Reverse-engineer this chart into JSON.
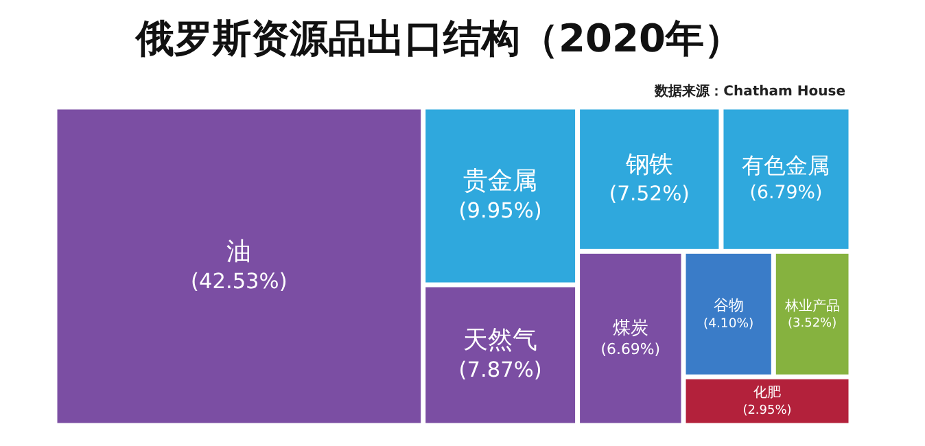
{
  "chart_data": {
    "type": "other",
    "title": "俄罗斯资源品出口结构（2020年）",
    "annotations": [
      "数据来源：Chatham House"
    ],
    "categories": [
      "油",
      "贵金属",
      "天然气",
      "钢铁",
      "有色金属",
      "煤炭",
      "谷物",
      "林业产品",
      "化肥"
    ],
    "values": [
      42.53,
      9.95,
      7.87,
      7.52,
      6.79,
      6.69,
      4.1,
      3.52,
      2.95
    ],
    "value_labels": [
      "(42.53%)",
      "(9.95%)",
      "(7.87%)",
      "(7.52%)",
      "(6.79%)",
      "(6.69%)",
      "(4.10%)",
      "(3.52%)",
      "(2.95%)"
    ],
    "colors": [
      "#7b4ea3",
      "#2fa8dd",
      "#7b4ea3",
      "#2fa8dd",
      "#2fa8dd",
      "#7b4ea3",
      "#3a7cc8",
      "#86b23f",
      "#b3213b"
    ]
  }
}
